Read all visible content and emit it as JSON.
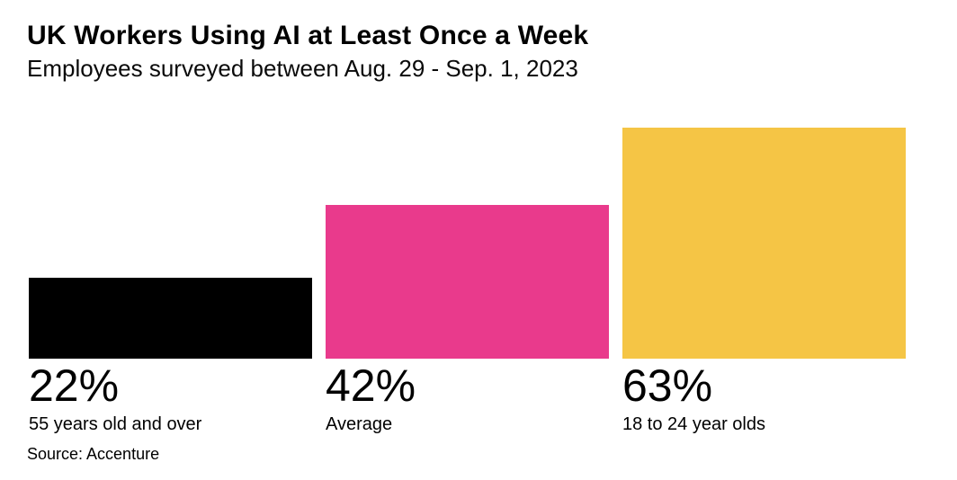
{
  "header": {
    "title": "UK Workers Using AI at Least Once a Week",
    "subtitle": "Employees surveyed between Aug. 29 - Sep. 1, 2023"
  },
  "footer": {
    "source": "Source: Accenture"
  },
  "chart_data": {
    "type": "bar",
    "title": "UK Workers Using AI at Least Once a Week",
    "subtitle": "Employees surveyed between Aug. 29 - Sep. 1, 2023",
    "source": "Source: Accenture",
    "categories": [
      "55 years old and over",
      "Average",
      "18 to 24 year olds"
    ],
    "values": [
      22,
      42,
      63
    ],
    "value_labels": [
      "22%",
      "42%",
      "63%"
    ],
    "bar_colors": [
      "#000000",
      "#E93A8C",
      "#F5C545"
    ],
    "orientation": "vertical",
    "xlabel": "",
    "ylabel": "",
    "ylim": [
      0,
      63
    ],
    "grid": false,
    "axes_shown": false,
    "legend": "none",
    "labels_position": "below-bars"
  }
}
